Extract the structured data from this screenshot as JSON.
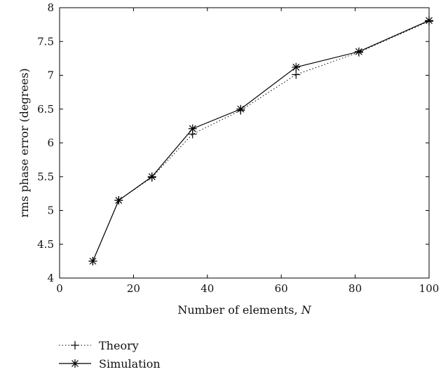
{
  "chart_data": {
    "type": "line",
    "xlabel": "Number of elements, ",
    "xlabel_var": "N",
    "ylabel": "rms phase error (degrees)",
    "xlim": [
      0,
      100
    ],
    "ylim": [
      4,
      8
    ],
    "xticks": [
      0,
      20,
      40,
      60,
      80,
      100
    ],
    "yticks": [
      4,
      4.5,
      5,
      5.5,
      6,
      6.5,
      7,
      7.5,
      8
    ],
    "xtick_labels": [
      "0",
      "20",
      "40",
      "60",
      "80",
      "100"
    ],
    "ytick_labels": [
      "4",
      "4.5",
      "5",
      "5.5",
      "6",
      "6.5",
      "7",
      "7.5",
      "8"
    ],
    "grid": false,
    "legend_position": "bottom-left",
    "x": [
      9,
      16,
      25,
      36,
      49,
      64,
      81,
      100
    ],
    "series": [
      {
        "name": "Theory",
        "style": "dotted",
        "marker": "plus",
        "values": [
          4.25,
          5.15,
          5.49,
          6.13,
          6.48,
          7.01,
          7.34,
          7.8
        ]
      },
      {
        "name": "Simulation",
        "style": "solid",
        "marker": "asterisk",
        "values": [
          4.25,
          5.15,
          5.5,
          6.21,
          6.5,
          7.12,
          7.35,
          7.81
        ]
      }
    ]
  }
}
